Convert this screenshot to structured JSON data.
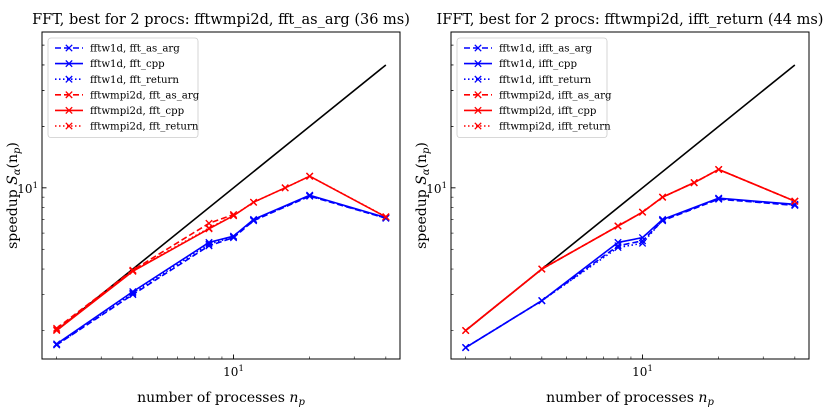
{
  "chart_data": [
    {
      "type": "line",
      "title": "FFT, best for 2 procs: fftwmpi2d, fft_as_arg (36 ms)",
      "xlabel": "number of processes n_p",
      "xlabel_text": "number of processes ",
      "xlabel_var": "n",
      "xlabel_sub": "p",
      "ylabel": "speedup S_α(n_p)",
      "ylabel_text": "speedup ",
      "ylabel_var": "S",
      "ylabel_sub": "α",
      "ylabel_arg": "(n",
      "ylabel_argsub": "p",
      "ylabel_close": ")",
      "xscale": "log",
      "yscale": "log",
      "xlim": [
        1.75,
        45.5
      ],
      "ylim": [
        1.45,
        58
      ],
      "xticks": [
        {
          "value": 10,
          "base": "10",
          "exp": "1"
        }
      ],
      "yticks": [
        {
          "value": 10,
          "base": "10",
          "exp": "1"
        }
      ],
      "legend_position": "top-left",
      "series": [
        {
          "name": "ideal",
          "color": "#000000",
          "dash": "solid",
          "marker": "none",
          "x": [
            2,
            40
          ],
          "y": [
            2,
            40
          ]
        },
        {
          "name": "fftw1d, fft_as_arg",
          "color": "#0000ff",
          "dash": "dashed",
          "marker": "x",
          "x": [
            2,
            4,
            8,
            10,
            12,
            20,
            40
          ],
          "y": [
            1.7,
            3.0,
            5.2,
            5.7,
            6.9,
            9.1,
            7.1
          ]
        },
        {
          "name": "fftw1d, fft_cpp",
          "color": "#0000ff",
          "dash": "solid",
          "marker": "x",
          "x": [
            2,
            4,
            8,
            10,
            12,
            20,
            40
          ],
          "y": [
            1.72,
            3.1,
            5.4,
            5.8,
            7.0,
            9.2,
            7.15
          ]
        },
        {
          "name": "fftw1d, fft_return",
          "color": "#0000ff",
          "dash": "dotted",
          "marker": "x",
          "x": [
            2,
            4,
            8,
            10,
            12,
            20,
            40
          ],
          "y": [
            1.7,
            3.05,
            5.3,
            5.75,
            6.95,
            9.15,
            7.1
          ]
        },
        {
          "name": "fftwmpi2d, fft_as_arg",
          "color": "#ff0000",
          "dash": "dashed",
          "marker": "x",
          "x": [
            2,
            4,
            8,
            10
          ],
          "y": [
            2.05,
            3.95,
            6.7,
            7.4
          ]
        },
        {
          "name": "fftwmpi2d, fft_cpp",
          "color": "#ff0000",
          "dash": "solid",
          "marker": "x",
          "x": [
            2,
            4,
            8,
            10,
            12,
            16,
            20,
            40
          ],
          "y": [
            2.0,
            3.9,
            6.3,
            7.3,
            8.5,
            10.0,
            11.4,
            7.2
          ]
        },
        {
          "name": "fftwmpi2d, fft_return",
          "color": "#ff0000",
          "dash": "dotted",
          "marker": "x",
          "x": [
            2,
            4,
            8,
            10,
            12,
            16,
            20,
            40
          ],
          "y": [
            2.02,
            3.92,
            6.35,
            7.32,
            8.5,
            10.0,
            11.4,
            7.22
          ]
        }
      ]
    },
    {
      "type": "line",
      "title": "IFFT, best for 2 procs: fftwmpi2d, ifft_return (44 ms)",
      "xlabel": "number of processes n_p",
      "xlabel_text": "number of processes ",
      "xlabel_var": "n",
      "xlabel_sub": "p",
      "ylabel": "speedup S_α(n_p)",
      "ylabel_text": "speedup ",
      "ylabel_var": "S",
      "ylabel_sub": "α",
      "ylabel_arg": "(n",
      "ylabel_argsub": "p",
      "ylabel_close": ")",
      "xscale": "log",
      "yscale": "log",
      "xlim": [
        1.75,
        45.5
      ],
      "ylim": [
        1.45,
        58
      ],
      "xticks": [
        {
          "value": 10,
          "base": "10",
          "exp": "1"
        }
      ],
      "yticks": [
        {
          "value": 10,
          "base": "10",
          "exp": "1"
        }
      ],
      "legend_position": "top-left",
      "series": [
        {
          "name": "ideal",
          "color": "#000000",
          "dash": "solid",
          "marker": "none",
          "x": [
            2,
            40
          ],
          "y": [
            2,
            40
          ]
        },
        {
          "name": "fftw1d, ifft_as_arg",
          "color": "#0000ff",
          "dash": "dashed",
          "marker": "x",
          "x": [
            2,
            4,
            8,
            10,
            12,
            20,
            40
          ],
          "y": [
            1.65,
            2.8,
            5.2,
            5.5,
            6.9,
            8.8,
            8.2
          ]
        },
        {
          "name": "fftw1d, ifft_cpp",
          "color": "#0000ff",
          "dash": "solid",
          "marker": "x",
          "x": [
            2,
            4,
            8,
            10,
            12,
            20,
            40
          ],
          "y": [
            1.65,
            2.8,
            5.4,
            5.7,
            7.0,
            8.9,
            8.3
          ]
        },
        {
          "name": "fftw1d, ifft_return",
          "color": "#0000ff",
          "dash": "dotted",
          "marker": "x",
          "x": [
            2,
            4,
            8,
            10,
            12,
            20,
            40
          ],
          "y": [
            1.65,
            2.8,
            5.1,
            5.35,
            6.95,
            8.85,
            8.25
          ]
        },
        {
          "name": "fftwmpi2d, ifft_as_arg",
          "color": "#ff0000",
          "dash": "dashed",
          "marker": "x",
          "x": [
            2,
            4,
            8,
            10,
            12,
            16,
            20,
            40
          ],
          "y": [
            2.0,
            4.0,
            6.5,
            7.6,
            9.0,
            10.6,
            12.3,
            8.6
          ]
        },
        {
          "name": "fftwmpi2d, ifft_cpp",
          "color": "#ff0000",
          "dash": "solid",
          "marker": "x",
          "x": [
            2,
            4,
            8,
            10,
            12,
            16,
            20,
            40
          ],
          "y": [
            2.0,
            4.0,
            6.5,
            7.6,
            9.0,
            10.6,
            12.3,
            8.6
          ]
        },
        {
          "name": "fftwmpi2d, ifft_return",
          "color": "#ff0000",
          "dash": "dotted",
          "marker": "x",
          "x": [
            2,
            4,
            8,
            10,
            12,
            16,
            20,
            40
          ],
          "y": [
            2.0,
            4.0,
            6.5,
            7.6,
            9.0,
            10.6,
            12.3,
            8.6
          ]
        }
      ]
    }
  ]
}
